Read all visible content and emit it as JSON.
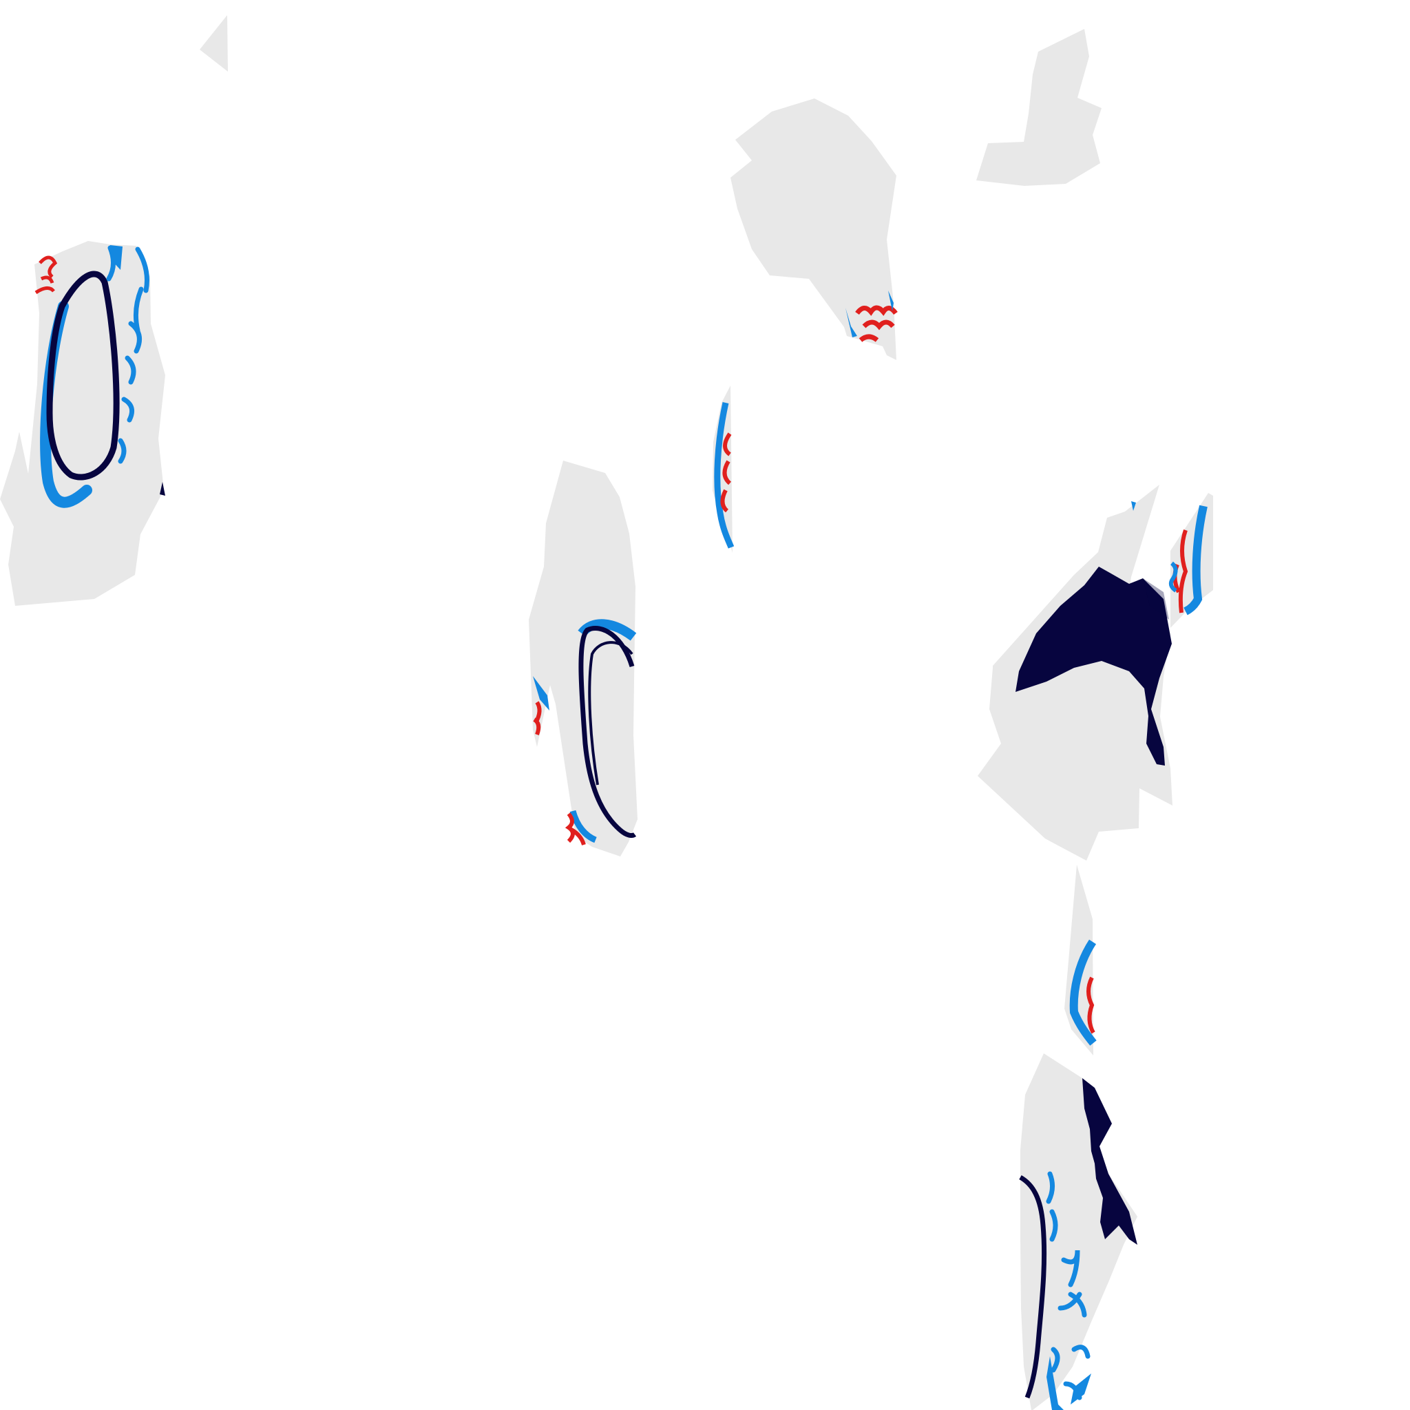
{
  "colors": {
    "background": "#ffffff",
    "fabric": "#e8e8e8",
    "navy": "#07053f",
    "blue": "#1488e0",
    "red": "#e0201e"
  },
  "pieces": [
    {
      "name": "corner-sliver"
    },
    {
      "name": "top-right-piece"
    },
    {
      "name": "top-center-piece"
    },
    {
      "name": "left-panel"
    },
    {
      "name": "center-strip"
    },
    {
      "name": "center-panel"
    },
    {
      "name": "right-large-panel"
    },
    {
      "name": "right-small-strip"
    },
    {
      "name": "lower-strip"
    },
    {
      "name": "bottom-panel"
    }
  ]
}
